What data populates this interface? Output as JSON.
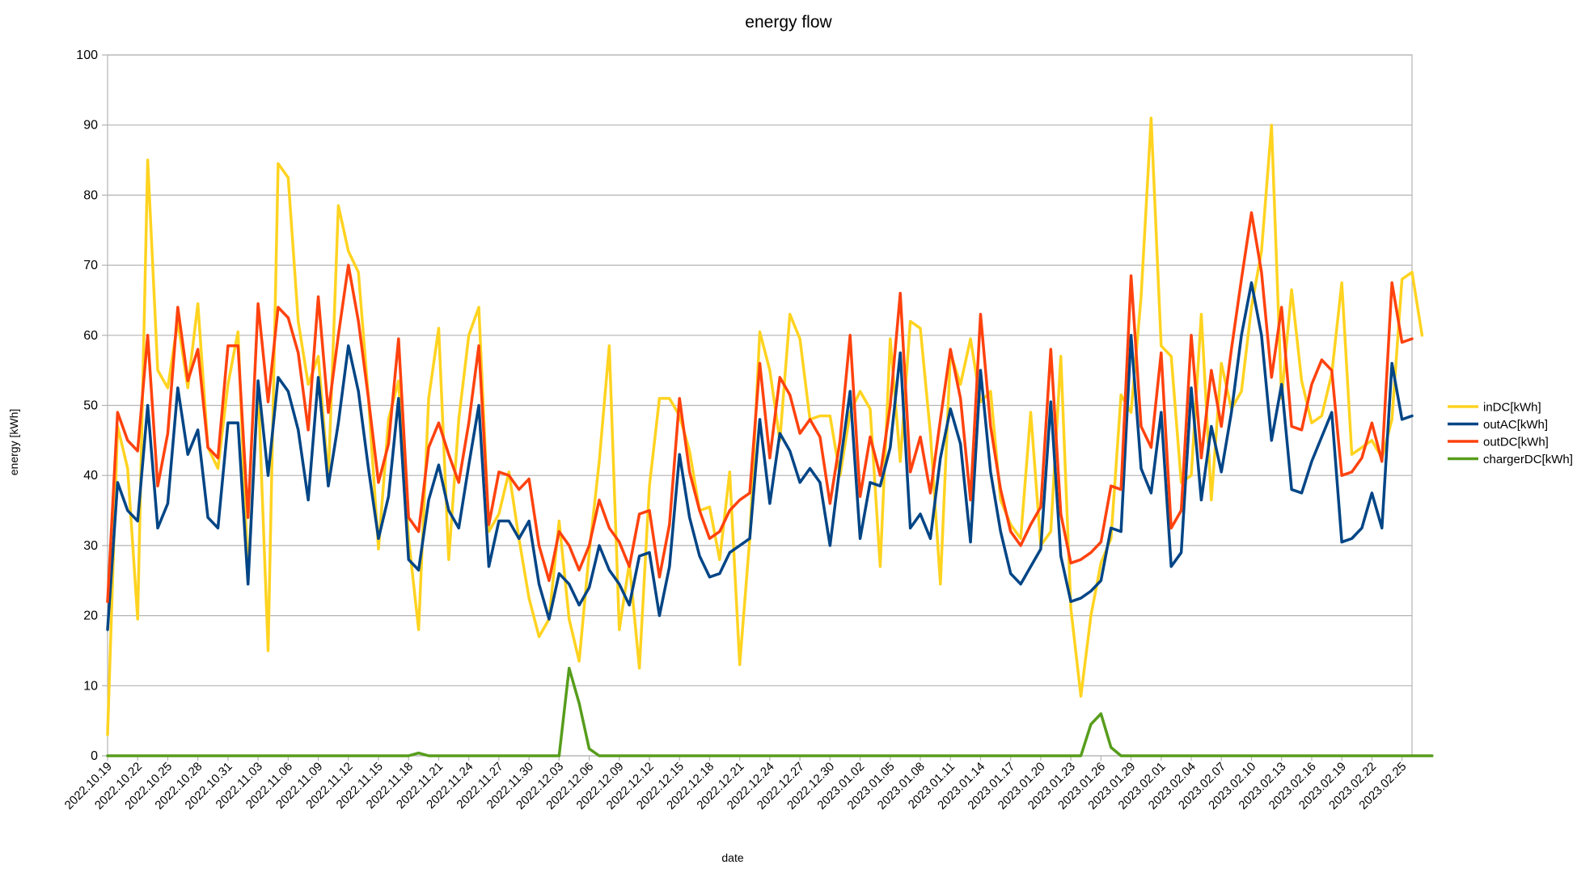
{
  "chart_data": {
    "type": "line",
    "title": "energy flow",
    "xlabel": "date",
    "ylabel": "energy [kWh]",
    "ylim": [
      0,
      100
    ],
    "yticks": [
      0,
      10,
      20,
      30,
      40,
      50,
      60,
      70,
      80,
      90,
      100
    ],
    "grid": "horizontal",
    "legend_position": "right",
    "x_start": "2022.10.19",
    "x_end": "2023.02.26",
    "x_tick_labels": [
      "2022.10.19",
      "2022.10.22",
      "2022.10.25",
      "2022.10.28",
      "2022.10.31",
      "2022.11.03",
      "2022.11.06",
      "2022.11.09",
      "2022.11.12",
      "2022.11.15",
      "2022.11.18",
      "2022.11.21",
      "2022.11.24",
      "2022.11.27",
      "2022.11.30",
      "2022.12.03",
      "2022.12.06",
      "2022.12.09",
      "2022.12.12",
      "2022.12.15",
      "2022.12.18",
      "2022.12.21",
      "2022.12.24",
      "2022.12.27",
      "2022.12.30",
      "2023.01.02",
      "2023.01.05",
      "2023.01.08",
      "2023.01.11",
      "2023.01.14",
      "2023.01.17",
      "2023.01.20",
      "2023.01.23",
      "2023.01.26",
      "2023.01.29",
      "2023.02.01",
      "2023.02.04",
      "2023.02.07",
      "2023.02.10",
      "2023.02.13",
      "2023.02.16",
      "2023.02.19",
      "2023.02.22",
      "2023.02.25"
    ],
    "series": [
      {
        "name": "inDC[kWh]",
        "color": "#FFD320",
        "values": [
          3,
          47,
          41,
          19.5,
          85,
          55,
          52.5,
          62,
          52.5,
          64.5,
          44,
          41,
          53,
          60.5,
          25.5,
          53,
          15,
          84.5,
          82.5,
          62,
          53,
          57,
          39.5,
          78.5,
          72,
          69,
          51,
          29.5,
          48,
          53.5,
          31,
          18,
          51,
          61,
          28,
          48,
          60,
          64,
          32,
          34.5,
          40.5,
          31,
          22.5,
          17,
          19.5,
          33.5,
          19.5,
          13.5,
          29,
          42,
          58.5,
          18,
          27.5,
          12.5,
          38.5,
          51,
          51,
          48.5,
          43.5,
          35,
          35.5,
          28,
          40.5,
          13,
          31,
          60.5,
          55,
          45,
          63,
          59.5,
          48,
          48.5,
          48.5,
          40,
          49,
          52,
          49.5,
          27,
          59.5,
          42,
          62,
          61,
          46,
          24.5,
          57.5,
          53,
          59.5,
          50.5,
          52,
          36.5,
          33,
          31,
          49,
          30,
          32,
          57,
          21,
          8.5,
          20,
          27.5,
          31,
          51.5,
          49,
          65.5,
          91,
          58.5,
          57,
          39,
          40,
          63,
          36.5,
          56,
          49.5,
          52,
          64,
          72,
          90,
          51,
          66.5,
          53.5,
          47.5,
          48.5,
          54.5,
          67.5,
          43,
          44,
          45,
          42.5,
          48,
          68,
          69,
          60
        ]
      },
      {
        "name": "outAC[kWh]",
        "color": "#004586",
        "values": [
          18,
          39,
          35,
          33.5,
          50,
          32.5,
          36,
          52.5,
          43,
          46.5,
          34,
          32.5,
          47.5,
          47.5,
          24.5,
          53.5,
          40,
          54,
          52,
          46.5,
          36.5,
          54,
          38.5,
          47.5,
          58.5,
          52,
          41,
          31,
          37,
          51,
          28,
          26.5,
          36.5,
          41.5,
          35,
          32.5,
          41.5,
          50,
          27,
          33.5,
          33.5,
          31,
          33.5,
          24.5,
          19.5,
          26,
          24.5,
          21.5,
          24,
          30,
          26.5,
          24.5,
          21.5,
          28.5,
          29,
          20,
          27,
          43,
          34,
          28.5,
          25.5,
          26,
          29,
          30,
          31,
          48,
          36,
          46,
          43.5,
          39,
          41,
          39,
          30,
          41.5,
          52,
          31,
          39,
          38.5,
          44,
          57.5,
          32.5,
          34.5,
          31,
          42.5,
          49.5,
          44.5,
          30.5,
          55,
          40.5,
          32,
          26,
          24.5,
          27,
          29.5,
          50.5,
          28.5,
          22,
          22.5,
          23.5,
          25,
          32.5,
          32,
          60,
          41,
          37.5,
          49,
          27,
          29,
          52.5,
          36.5,
          47,
          40.5,
          49,
          60,
          67.5,
          60,
          45,
          53,
          38,
          37.5,
          42,
          45.5,
          49,
          30.5,
          31,
          32.5,
          37.5,
          32.5,
          56,
          48,
          48.5
        ]
      },
      {
        "name": "outDC[kWh]",
        "color": "#FF420E",
        "values": [
          22,
          49,
          45,
          43.5,
          60,
          38.5,
          46,
          64,
          53.5,
          58,
          44,
          42.5,
          58.5,
          58.5,
          34,
          64.5,
          50.5,
          64,
          62.5,
          57.5,
          46.5,
          65.5,
          49,
          60,
          70,
          62,
          51,
          39,
          44.5,
          59.5,
          34,
          32,
          44,
          47.5,
          43,
          39,
          47.5,
          58.5,
          33,
          40.5,
          40,
          38,
          39.5,
          30,
          25,
          32,
          30,
          26.5,
          30,
          36.5,
          32.5,
          30.5,
          27,
          34.5,
          35,
          25.5,
          33,
          51,
          40.5,
          35,
          31,
          32,
          35,
          36.5,
          37.5,
          56,
          42.5,
          54,
          51.5,
          46,
          48,
          45.5,
          36,
          45,
          60,
          37,
          45.5,
          40,
          50,
          66,
          40.5,
          45.5,
          37.5,
          48,
          58,
          51,
          36.5,
          63,
          47,
          38,
          32,
          30,
          33,
          35.5,
          58,
          34.5,
          27.5,
          28,
          29,
          30.5,
          38.5,
          38,
          68.5,
          47,
          44,
          57.5,
          32.5,
          35,
          60,
          42.5,
          55,
          47,
          58,
          68,
          77.5,
          69,
          54,
          64,
          47,
          46.5,
          53,
          56.5,
          55,
          40,
          40.5,
          42.5,
          47.5,
          42,
          67.5,
          59,
          59.5
        ]
      },
      {
        "name": "chargerDC[kWh]",
        "color": "#579D1C",
        "values": [
          0,
          0,
          0,
          0,
          0,
          0,
          0,
          0,
          0,
          0,
          0,
          0,
          0,
          0,
          0,
          0,
          0,
          0,
          0,
          0,
          0,
          0,
          0,
          0,
          0,
          0,
          0,
          0,
          0,
          0,
          0,
          0.4,
          0,
          0,
          0,
          0,
          0,
          0,
          0,
          0,
          0,
          0,
          0,
          0,
          0,
          0,
          12.5,
          7.5,
          1,
          0,
          0,
          0,
          0,
          0,
          0,
          0,
          0,
          0,
          0,
          0,
          0,
          0,
          0,
          0,
          0,
          0,
          0,
          0,
          0,
          0,
          0,
          0,
          0,
          0,
          0,
          0,
          0,
          0,
          0,
          0,
          0,
          0,
          0,
          0,
          0,
          0,
          0,
          0,
          0,
          0,
          0,
          0,
          0,
          0,
          0,
          0,
          0,
          0,
          4.5,
          6,
          1.2,
          0,
          0,
          0,
          0,
          0,
          0,
          0,
          0,
          0,
          0,
          0,
          0,
          0,
          0,
          0,
          0,
          0,
          0,
          0,
          0,
          0,
          0,
          0,
          0,
          0,
          0,
          0,
          0,
          0,
          0,
          0,
          0
        ]
      }
    ]
  }
}
